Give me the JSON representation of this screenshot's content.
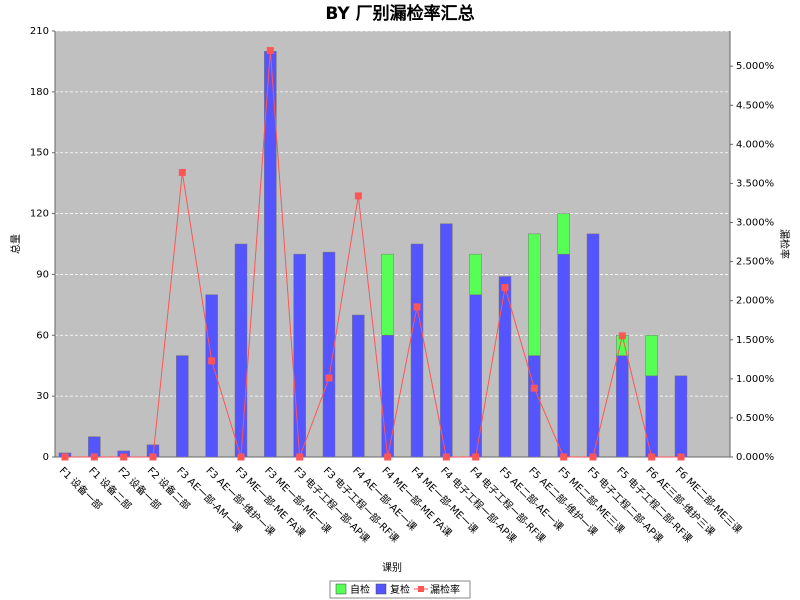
{
  "chart_data": {
    "type": "bar",
    "title": "BY 厂别漏检率汇总",
    "x_label": "课别",
    "y_label": "总量",
    "y2_label": "漏检率",
    "categories": [
      "F1 设备一部",
      "F1 设备二部",
      "F2 设备一部",
      "F2 设备二部",
      "F3 AE一部-AM一课",
      "F3 AE一部-维护一课",
      "F3 ME一部-ME FA课",
      "F3 ME一部-ME一课",
      "F3 电子工程一部-AP课",
      "F3 电子工程一部-RF课",
      "F4 AE一部-AE一课",
      "F4 ME一部-ME FA课",
      "F4 ME一部-ME一课",
      "F4 电子工程一部-AP课",
      "F4 电子工程一部-RF课",
      "F5 AE二部-AE一课",
      "F5 AE二部-维护一课",
      "F5 ME二部-ME三课",
      "F5 电子工程二部-AP课",
      "F5 电子工程二部-RF课",
      "F6 AE三部-维护三课",
      "F6 ME二部-ME三课"
    ],
    "series": [
      {
        "name": "自检",
        "color": "#55ff55",
        "values": [
          0,
          0,
          0,
          0,
          0,
          0,
          0,
          0,
          0,
          0,
          0,
          40,
          0,
          0,
          20,
          0,
          60,
          20,
          0,
          10,
          20,
          0
        ]
      },
      {
        "name": "复检",
        "color": "#5555ff",
        "values": [
          2,
          10,
          3,
          6,
          50,
          80,
          105,
          200,
          100,
          101,
          70,
          60,
          105,
          115,
          80,
          89,
          50,
          100,
          110,
          50,
          40,
          40
        ]
      },
      {
        "name": "漏检率",
        "color": "#ff5555",
        "type": "line",
        "axis": "y2",
        "values": [
          0,
          0,
          0,
          0,
          3.64,
          1.23,
          0,
          5.2,
          0,
          1.01,
          3.34,
          0,
          1.92,
          0,
          0,
          2.17,
          0.88,
          0,
          0,
          1.55,
          0,
          0
        ]
      }
    ],
    "ylim": [
      0,
      210
    ],
    "yticks": [
      0,
      30,
      60,
      90,
      120,
      150,
      180,
      210
    ],
    "y2lim": [
      0,
      5.45
    ],
    "y2ticks": [
      {
        "value": 0,
        "label": "0.000%"
      },
      {
        "value": 0.5,
        "label": "0.500%"
      },
      {
        "value": 1,
        "label": "1.000%"
      },
      {
        "value": 1.5,
        "label": "1.500%"
      },
      {
        "value": 2,
        "label": "2.000%"
      },
      {
        "value": 2.5,
        "label": "2.500%"
      },
      {
        "value": 3,
        "label": "3.000%"
      },
      {
        "value": 3.5,
        "label": "3.500%"
      },
      {
        "value": 4,
        "label": "4.000%"
      },
      {
        "value": 4.5,
        "label": "4.500%"
      },
      {
        "value": 5,
        "label": "5.000%"
      }
    ],
    "grid": true,
    "legend": "bottom"
  }
}
